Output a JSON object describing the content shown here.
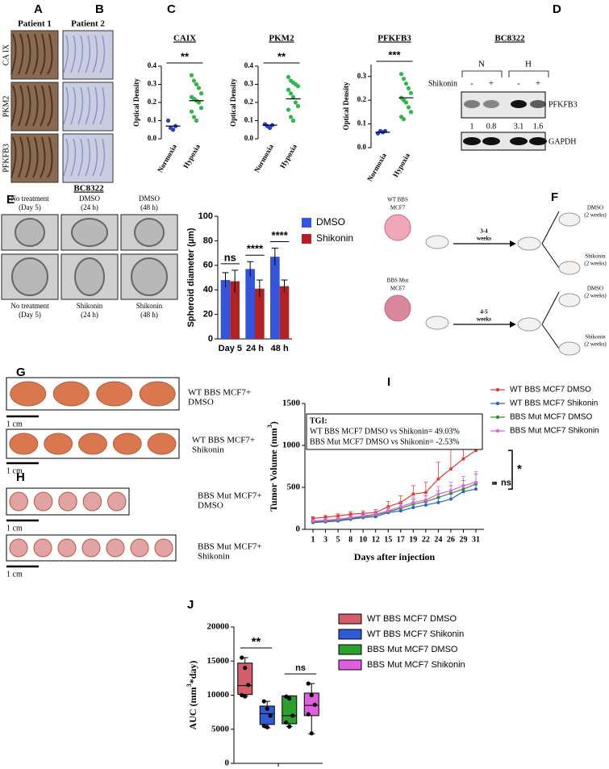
{
  "panel_labels": [
    "A",
    "B",
    "C",
    "D",
    "E",
    "F",
    "G",
    "H",
    "I",
    "J"
  ],
  "panel_a_b": {
    "columns": [
      "Patient 1",
      "Patient 2"
    ],
    "rows": [
      "CA IX",
      "PKM2",
      "PFKFB3"
    ]
  },
  "panel_d": {
    "title": "BC8322",
    "groups": [
      "N",
      "H"
    ],
    "treatment": "Shikonin",
    "lanes": [
      "-",
      "+",
      "-",
      "+"
    ],
    "ratios": [
      1,
      0.8,
      3.1,
      1.6
    ],
    "proteins": [
      "PFKFB3",
      "GAPDH"
    ]
  },
  "panel_e_images": {
    "title": "BC8322",
    "captions": [
      [
        "No treatment",
        "(Day 5)"
      ],
      [
        "DMSO",
        "(24 h)"
      ],
      [
        "DMSO",
        "(48 h)"
      ],
      [
        "No treatment",
        "(Day 5)"
      ],
      [
        "Shikonin",
        "(24 h)"
      ],
      [
        "Shikonin",
        "(48 h)"
      ]
    ]
  },
  "panel_f": {
    "models": [
      [
        "WT BBS",
        "MCF7"
      ],
      [
        "BBS Mut",
        "MCF7"
      ]
    ],
    "durations": [
      [
        "3-4",
        "weeks"
      ],
      [
        "4-5",
        "weeks"
      ]
    ],
    "treatments": [
      [
        "DMSO",
        "(2 weeks)"
      ],
      [
        "Shikonin",
        "(2 weeks)"
      ],
      [
        "DMSO",
        "(2 weeks)"
      ],
      [
        "Shikonin",
        "(2 weeks)"
      ]
    ]
  },
  "panel_g_h": {
    "groups": [
      [
        "WT BBS MCF7+",
        "DMSO"
      ],
      [
        "WT BBS MCF7+",
        "Shikonin"
      ],
      [
        "BBS Mut MCF7+",
        "DMSO"
      ],
      [
        "BBS Mut MCF7+",
        "Shikonin"
      ]
    ],
    "scale_bars": [
      "1 cm",
      "1 cm",
      "1 cm",
      "1 cm"
    ]
  },
  "chart_data": [
    {
      "type": "strip",
      "title": "CAIX",
      "ylabel": "Optical Density",
      "categories": [
        "Normoxia",
        "Hypoxia"
      ],
      "colors": [
        "#2b3fd1",
        "#2fb84a"
      ],
      "points": [
        [
          0.1,
          0.06,
          0.05,
          0.07
        ],
        [
          0.35,
          0.32,
          0.3,
          0.28,
          0.25,
          0.23,
          0.22,
          0.21,
          0.2,
          0.17,
          0.15,
          0.12,
          0.1
        ]
      ],
      "center": [
        0.07,
        0.21
      ],
      "significance": "**",
      "ylim": [
        0,
        0.4
      ],
      "yticks": [
        {
          "value": 0,
          "label": "0.0"
        },
        0.1,
        0.2,
        0.3,
        0.4
      ]
    },
    {
      "type": "strip",
      "title": "PKM2",
      "ylabel": "Optical Density",
      "categories": [
        "Normoxia",
        "Hypoxia"
      ],
      "colors": [
        "#2b3fd1",
        "#2fb84a"
      ],
      "points": [
        [
          0.08,
          0.07,
          0.06,
          0.075
        ],
        [
          0.34,
          0.32,
          0.31,
          0.3,
          0.29,
          0.27,
          0.25,
          0.23,
          0.2,
          0.18,
          0.16,
          0.12,
          0.1
        ]
      ],
      "center": [
        0.075,
        0.22
      ],
      "significance": "**",
      "ylim": [
        0,
        0.4
      ],
      "yticks": [
        {
          "value": 0,
          "label": "0.0"
        },
        0.1,
        0.2,
        0.3,
        0.4
      ]
    },
    {
      "type": "strip",
      "title": "PFKFB3",
      "ylabel": "Optical Density",
      "categories": [
        "Normoxia",
        "Hypoxia"
      ],
      "colors": [
        "#2b3fd1",
        "#2fb84a"
      ],
      "points": [
        [
          0.06,
          0.07,
          0.065,
          0.07
        ],
        [
          0.31,
          0.29,
          0.27,
          0.25,
          0.23,
          0.21,
          0.2,
          0.19,
          0.17,
          0.15,
          0.13,
          0.12
        ]
      ],
      "center": [
        0.065,
        0.21
      ],
      "significance": "***",
      "ylim": [
        0,
        0.35
      ],
      "yticks": [
        {
          "value": 0,
          "label": "0.0"
        },
        0.1,
        0.2,
        0.3
      ]
    },
    {
      "type": "bar",
      "ylabel": "Spheroid diameter (µm)",
      "categories": [
        "Day 5",
        "24 h",
        "48 h"
      ],
      "series": [
        {
          "name": "DMSO",
          "color": "#3355dd",
          "values": [
            48,
            57,
            67
          ],
          "errors": [
            6,
            6,
            7
          ]
        },
        {
          "name": "Shikonin",
          "color": "#b22222",
          "values": [
            47,
            41,
            43
          ],
          "errors": [
            9,
            7,
            5
          ]
        }
      ],
      "significance": [
        "ns",
        "****",
        "****"
      ],
      "ylim": [
        0,
        100
      ],
      "yticks": [
        0,
        20,
        40,
        60,
        80,
        100
      ]
    },
    {
      "type": "line",
      "ylabel": [
        "Tumor Volume (mm",
        "3",
        ")"
      ],
      "xlabel": "Days after injection",
      "categories": [
        1,
        3,
        5,
        8,
        10,
        12,
        15,
        17,
        19,
        22,
        24,
        26,
        29,
        31
      ],
      "series": [
        {
          "name": "WT BBS MCF7 DMSO",
          "color": "#e8392f",
          "values": [
            130,
            145,
            160,
            180,
            190,
            200,
            270,
            320,
            420,
            440,
            600,
            720,
            840,
            940
          ],
          "errors": [
            20,
            20,
            25,
            30,
            30,
            35,
            60,
            80,
            100,
            120,
            200,
            250,
            300,
            330
          ]
        },
        {
          "name": "WT BBS MCF7 Shikonin",
          "color": "#2f5fd0",
          "values": [
            80,
            90,
            100,
            120,
            140,
            150,
            200,
            220,
            260,
            290,
            320,
            360,
            450,
            480
          ],
          "errors": [
            15,
            15,
            20,
            20,
            25,
            25,
            30,
            35,
            40,
            45,
            50,
            60,
            70,
            80
          ]
        },
        {
          "name": "BBS Mut MCF7 DMSO",
          "color": "#3a8a3a",
          "values": [
            90,
            100,
            110,
            130,
            150,
            170,
            210,
            250,
            300,
            330,
            380,
            430,
            480,
            540
          ],
          "errors": [
            15,
            15,
            20,
            25,
            25,
            30,
            40,
            50,
            60,
            70,
            80,
            90,
            100,
            120
          ]
        },
        {
          "name": "BBS Mut MCF7 Shikonin",
          "color": "#e060e0",
          "values": [
            100,
            110,
            120,
            140,
            160,
            180,
            220,
            270,
            320,
            350,
            420,
            460,
            520,
            560
          ],
          "errors": [
            15,
            20,
            20,
            25,
            30,
            35,
            45,
            55,
            65,
            75,
            90,
            100,
            110,
            130
          ]
        }
      ],
      "annotation": [
        "TGI:",
        "WT BBS MCF7 DMSO vs Shikonin= 49.03%",
        "BBS Mut MCF7 DMSO vs Shikonin= -2.53%"
      ],
      "significance": [
        "*",
        "ns"
      ],
      "ylim": [
        0,
        1500
      ],
      "yticks": [
        0,
        500,
        1000,
        1500
      ]
    },
    {
      "type": "box",
      "ylabel": [
        "AUC (mm",
        "3",
        "*day)"
      ],
      "series": [
        {
          "name": "WT BBS MCF7 DMSO",
          "color": "#d45d6a",
          "min": 9900,
          "q1": 10100,
          "median": 11400,
          "q3": 14700,
          "max": 15500,
          "points": [
            15500,
            14000,
            11500,
            10000,
            9800
          ]
        },
        {
          "name": "WT BBS MCF7 Shikonin",
          "color": "#2e5bd6",
          "min": 5200,
          "q1": 5700,
          "median": 7300,
          "q3": 8400,
          "max": 9100,
          "points": [
            9100,
            8000,
            7000,
            5500,
            5300
          ]
        },
        {
          "name": "BBS Mut MCF7 DMSO",
          "color": "#2ca02c",
          "min": 5400,
          "q1": 5800,
          "median": 7000,
          "q3": 9900,
          "max": 9900,
          "points": [
            9800,
            9500,
            7000,
            6000,
            5400
          ]
        },
        {
          "name": "BBS Mut MCF7 Shikonin",
          "color": "#e05ee0",
          "min": 4300,
          "q1": 7000,
          "median": 8500,
          "q3": 10300,
          "max": 11700,
          "points": [
            11700,
            10000,
            8600,
            7200,
            4400
          ]
        }
      ],
      "significance": [
        "**",
        "ns"
      ],
      "ylim": [
        0,
        20000
      ],
      "yticks": [
        0,
        5000,
        10000,
        15000,
        20000
      ]
    }
  ]
}
